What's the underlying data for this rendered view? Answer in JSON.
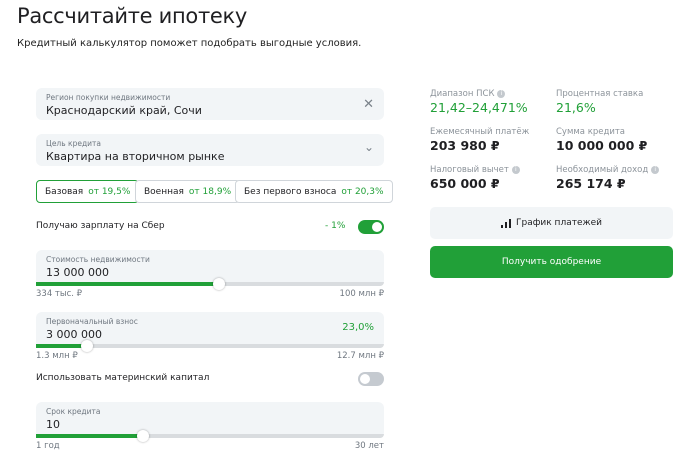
{
  "page": {
    "title": "Рассчитайте ипотеку",
    "subtitle": "Кредитный калькулятор поможет подобрать выгодные условия."
  },
  "region": {
    "label": "Регион покупки недвижимости",
    "value": "Краснодарский край, Сочи",
    "icon": "close-icon"
  },
  "purpose": {
    "label": "Цель кредита",
    "value": "Квартира на вторичном рынке",
    "icon": "chevron-down-icon"
  },
  "programs": [
    {
      "name": "Базовая",
      "rate": "от 19,5%",
      "selected": true
    },
    {
      "name": "Военная",
      "rate": "от 18,9%",
      "selected": false
    },
    {
      "name": "Без первого взноса",
      "rate": "от 20,3%",
      "selected": false
    }
  ],
  "salary": {
    "label": "Получаю зарплату на Сбер",
    "discount": "- 1%",
    "on": true
  },
  "property_cost": {
    "label": "Стоимость недвижимости",
    "value": "13 000 000",
    "min": "334 тыс. ₽",
    "max": "100 млн ₽",
    "fill_fraction": 0.526
  },
  "down_payment": {
    "label": "Первоначальный взнос",
    "value": "3 000 000",
    "percent": "23,0%",
    "min": "1.3 млн ₽",
    "max": "12.7 млн ₽",
    "fill_fraction": 0.147
  },
  "maternity": {
    "label": "Использовать материнский капитал",
    "on": false
  },
  "term": {
    "label": "Срок кредита",
    "value": "10",
    "min": "1 год",
    "max": "30 лет",
    "fill_fraction": 0.307
  },
  "results": {
    "psk": {
      "label": "Диапазон ПСК",
      "value": "21,42–24,471%"
    },
    "rate": {
      "label": "Процентная ставка",
      "value": "21,6%"
    },
    "monthly": {
      "label": "Ежемесячный платёж",
      "value": "203 980 ₽"
    },
    "sum": {
      "label": "Сумма кредита",
      "value": "10 000 000 ₽"
    },
    "tax": {
      "label": "Налоговый вычет",
      "value": "650 000 ₽"
    },
    "income": {
      "label": "Необходимый доход",
      "value": "265 174 ₽"
    }
  },
  "buttons": {
    "schedule": "График платежей",
    "approve": "Получить одобрение"
  },
  "colors": {
    "accent": "#21a038",
    "field_bg": "#f2f5f7"
  }
}
